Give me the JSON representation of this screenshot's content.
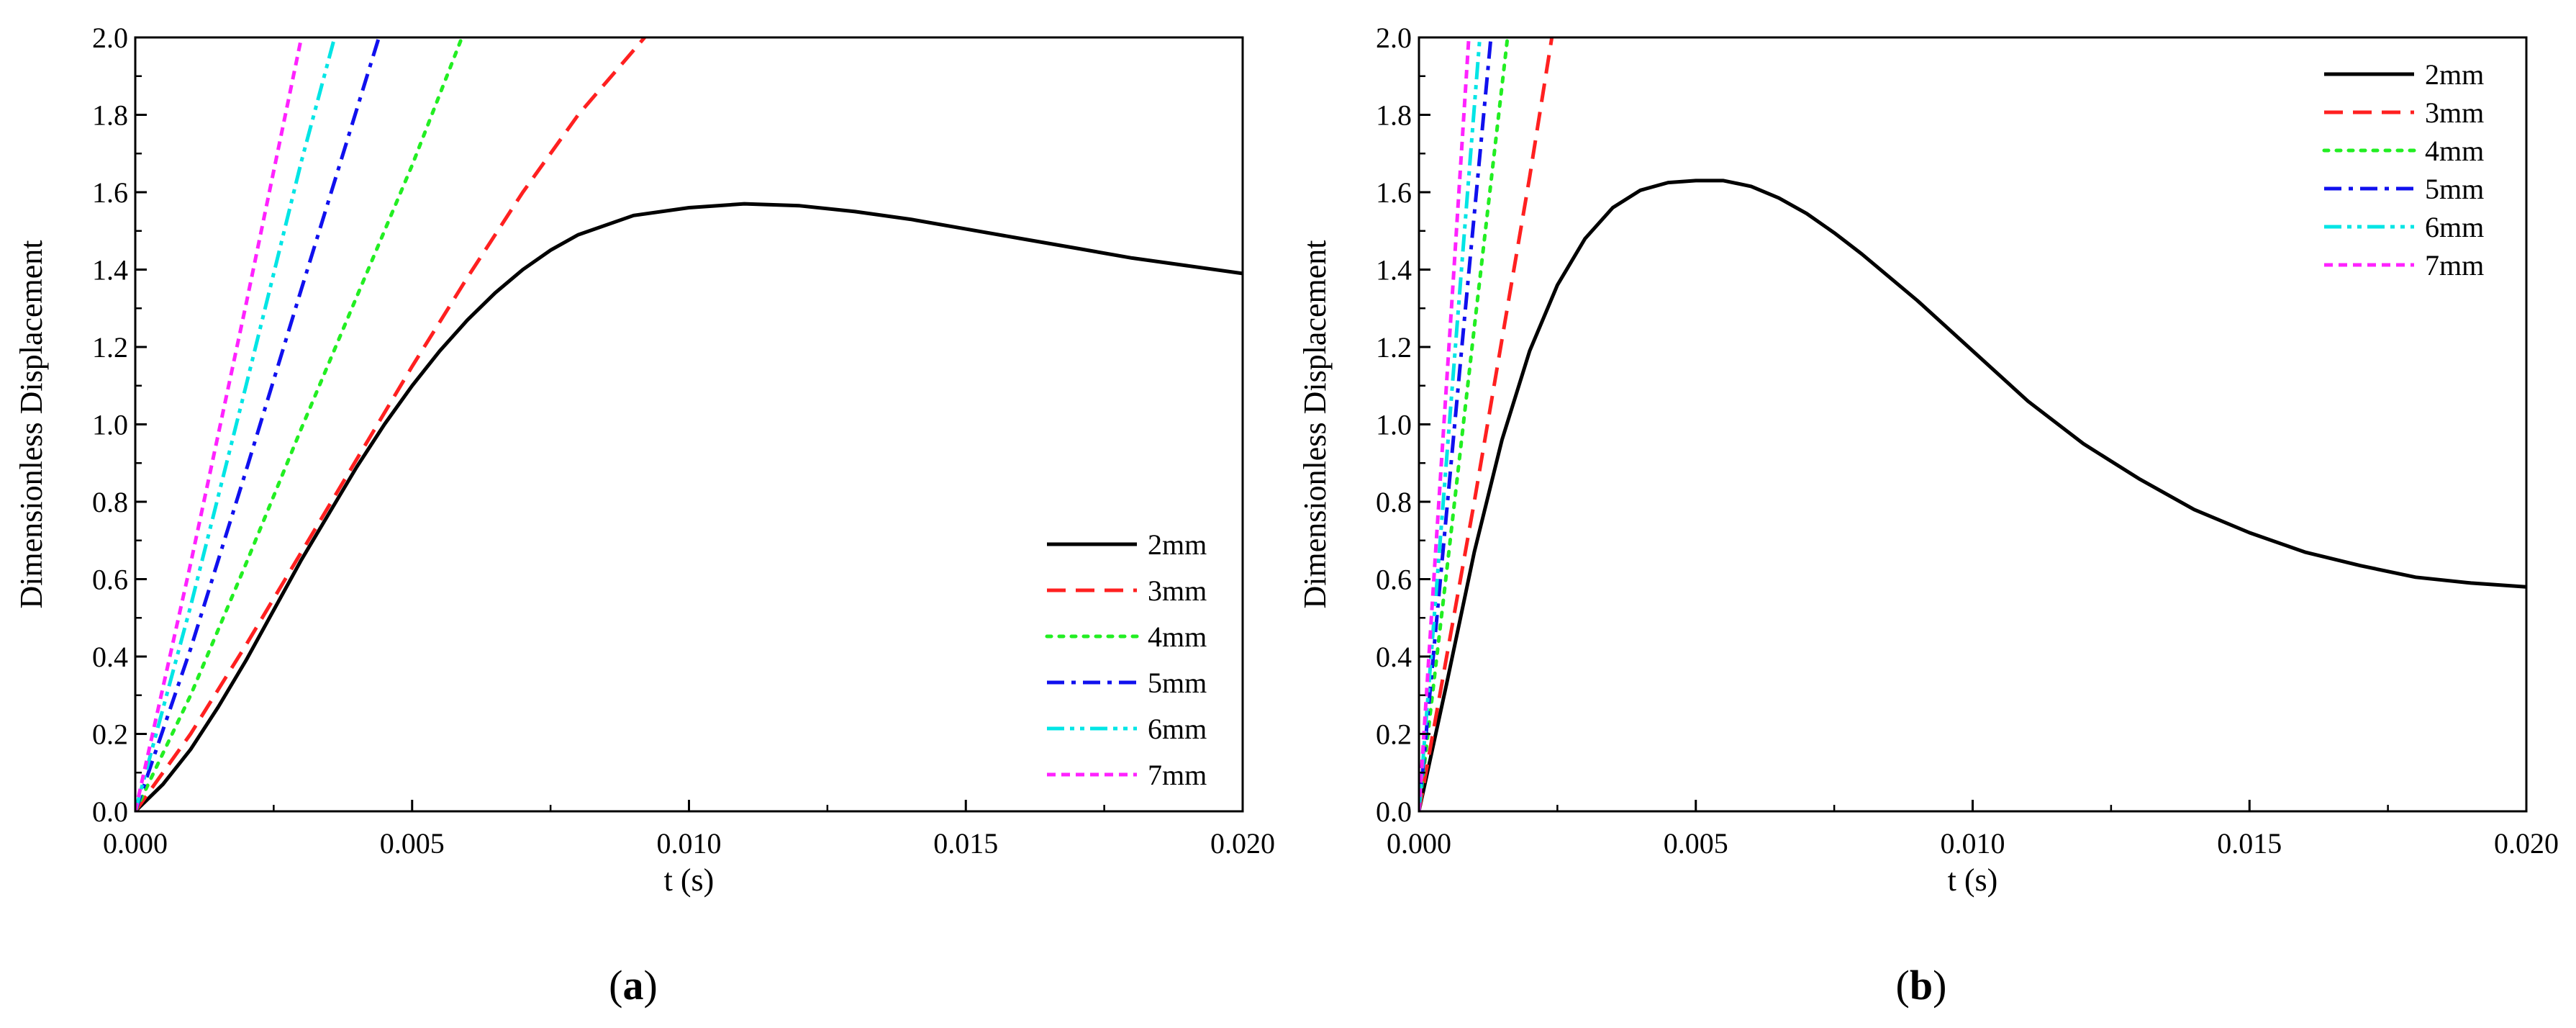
{
  "figure": {
    "panel_a_label_open": "(",
    "panel_a_label_letter": "a",
    "panel_a_label_close": ")",
    "panel_b_label_open": "(",
    "panel_b_label_letter": "b",
    "panel_b_label_close": ")"
  },
  "chart_data": [
    {
      "id": "a",
      "type": "line",
      "title": "",
      "xlabel": "t (s)",
      "ylabel": "Dimensionless Displacement",
      "xlim": [
        0,
        0.02
      ],
      "ylim": [
        0,
        2.0
      ],
      "xticks": [
        "0.000",
        "0.005",
        "0.010",
        "0.015",
        "0.020"
      ],
      "xtick_values": [
        0,
        0.005,
        0.01,
        0.015,
        0.02
      ],
      "yticks": [
        "0.0",
        "0.2",
        "0.4",
        "0.6",
        "0.8",
        "1.0",
        "1.2",
        "1.4",
        "1.6",
        "1.8",
        "2.0"
      ],
      "ytick_values": [
        0,
        0.2,
        0.4,
        0.6,
        0.8,
        1.0,
        1.2,
        1.4,
        1.6,
        1.8,
        2.0
      ],
      "legend_position": "bottom-right",
      "series": [
        {
          "name": "2mm",
          "color": "#000000",
          "style": "solid",
          "x": [
            0,
            0.0005,
            0.001,
            0.0015,
            0.002,
            0.0025,
            0.003,
            0.0035,
            0.004,
            0.0045,
            0.005,
            0.0055,
            0.006,
            0.0065,
            0.007,
            0.0075,
            0.008,
            0.009,
            0.01,
            0.011,
            0.012,
            0.013,
            0.014,
            0.015,
            0.016,
            0.017,
            0.018,
            0.019,
            0.02
          ],
          "y": [
            0,
            0.07,
            0.16,
            0.27,
            0.39,
            0.52,
            0.65,
            0.77,
            0.89,
            1.0,
            1.1,
            1.19,
            1.27,
            1.34,
            1.4,
            1.45,
            1.49,
            1.54,
            1.56,
            1.57,
            1.565,
            1.55,
            1.53,
            1.505,
            1.48,
            1.455,
            1.43,
            1.41,
            1.39
          ]
        },
        {
          "name": "3mm",
          "color": "#ff2020",
          "style": "dashed",
          "x": [
            0,
            0.001,
            0.002,
            0.003,
            0.004,
            0.005,
            0.006,
            0.007,
            0.008,
            0.0092
          ],
          "y": [
            0,
            0.2,
            0.43,
            0.67,
            0.91,
            1.15,
            1.38,
            1.6,
            1.8,
            2.0
          ]
        },
        {
          "name": "4mm",
          "color": "#22ee22",
          "style": "dotted",
          "x": [
            0,
            0.001,
            0.002,
            0.003,
            0.004,
            0.005,
            0.0059
          ],
          "y": [
            0,
            0.3,
            0.64,
            0.99,
            1.33,
            1.67,
            2.0
          ]
        },
        {
          "name": "5mm",
          "color": "#1010ee",
          "style": "dashdot",
          "x": [
            0,
            0.001,
            0.002,
            0.003,
            0.0044
          ],
          "y": [
            0,
            0.42,
            0.88,
            1.35,
            2.0
          ]
        },
        {
          "name": "6mm",
          "color": "#00e5e5",
          "style": "dashdotdot",
          "x": [
            0,
            0.001,
            0.002,
            0.003,
            0.0036
          ],
          "y": [
            0,
            0.53,
            1.1,
            1.68,
            2.0
          ]
        },
        {
          "name": "7mm",
          "color": "#ff22ff",
          "style": "shortdash",
          "x": [
            0,
            0.001,
            0.002,
            0.003
          ],
          "y": [
            0,
            0.64,
            1.31,
            2.0
          ]
        }
      ]
    },
    {
      "id": "b",
      "type": "line",
      "title": "",
      "xlabel": "t (s)",
      "ylabel": "Dimensionless Displacement",
      "xlim": [
        0,
        0.02
      ],
      "ylim": [
        0,
        2.0
      ],
      "xticks": [
        "0.000",
        "0.005",
        "0.010",
        "0.015",
        "0.020"
      ],
      "xtick_values": [
        0,
        0.005,
        0.01,
        0.015,
        0.02
      ],
      "yticks": [
        "0.0",
        "0.2",
        "0.4",
        "0.6",
        "0.8",
        "1.0",
        "1.2",
        "1.4",
        "1.6",
        "1.8",
        "2.0"
      ],
      "ytick_values": [
        0,
        0.2,
        0.4,
        0.6,
        0.8,
        1.0,
        1.2,
        1.4,
        1.6,
        1.8,
        2.0
      ],
      "legend_position": "top-right",
      "series": [
        {
          "name": "2mm",
          "color": "#000000",
          "style": "solid",
          "x": [
            0,
            0.0005,
            0.001,
            0.0015,
            0.002,
            0.0025,
            0.003,
            0.0035,
            0.004,
            0.0045,
            0.005,
            0.0055,
            0.006,
            0.0065,
            0.007,
            0.0075,
            0.008,
            0.009,
            0.01,
            0.011,
            0.012,
            0.013,
            0.014,
            0.015,
            0.016,
            0.017,
            0.018,
            0.019,
            0.02
          ],
          "y": [
            0,
            0.33,
            0.67,
            0.96,
            1.19,
            1.36,
            1.48,
            1.56,
            1.605,
            1.625,
            1.63,
            1.63,
            1.615,
            1.585,
            1.545,
            1.495,
            1.44,
            1.32,
            1.19,
            1.06,
            0.95,
            0.86,
            0.78,
            0.72,
            0.67,
            0.635,
            0.605,
            0.59,
            0.58
          ]
        },
        {
          "name": "3mm",
          "color": "#ff2020",
          "style": "dashed",
          "x": [
            0,
            0.0005,
            0.001,
            0.0015,
            0.002,
            0.0024
          ],
          "y": [
            0,
            0.4,
            0.8,
            1.22,
            1.64,
            2.0
          ]
        },
        {
          "name": "4mm",
          "color": "#22ee22",
          "style": "dotted",
          "x": [
            0,
            0.0005,
            0.001,
            0.0016
          ],
          "y": [
            0,
            0.62,
            1.25,
            2.0
          ]
        },
        {
          "name": "5mm",
          "color": "#1010ee",
          "style": "dashdot",
          "x": [
            0,
            0.0004,
            0.0008,
            0.0013
          ],
          "y": [
            0,
            0.62,
            1.24,
            2.0
          ]
        },
        {
          "name": "6mm",
          "color": "#00e5e5",
          "style": "dashdotdot",
          "x": [
            0,
            0.0004,
            0.0008,
            0.0011
          ],
          "y": [
            0,
            0.73,
            1.46,
            2.0
          ]
        },
        {
          "name": "7mm",
          "color": "#ff22ff",
          "style": "shortdash",
          "x": [
            0,
            0.0003,
            0.0006,
            0.0009
          ],
          "y": [
            0,
            0.67,
            1.33,
            2.0
          ]
        }
      ]
    }
  ]
}
